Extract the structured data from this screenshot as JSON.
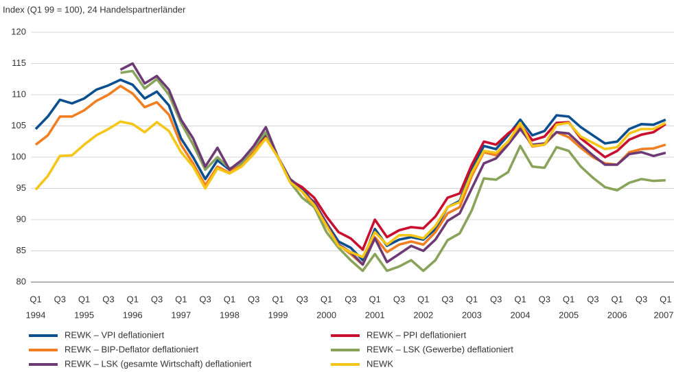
{
  "chart_data": {
    "type": "line",
    "title": "Index (Q1 99 = 100), 24 Handelspartnerländer",
    "categories": [
      "Q1",
      null,
      "Q3",
      null,
      "Q1",
      null,
      "Q3",
      null,
      "Q1",
      null,
      "Q3",
      null,
      "Q1",
      null,
      "Q3",
      null,
      "Q1",
      null,
      "Q3",
      null,
      "Q1",
      null,
      "Q3",
      null,
      "Q1",
      null,
      "Q3",
      null,
      "Q1",
      null,
      "Q3",
      null,
      "Q1",
      null,
      "Q3",
      null,
      "Q1",
      null,
      "Q3",
      null,
      "Q1",
      null,
      "Q3",
      null,
      "Q1",
      null,
      "Q3",
      null,
      "Q1",
      null,
      "Q3",
      null,
      "Q1"
    ],
    "year_labels": [
      "1994",
      "1995",
      "1996",
      "1997",
      "1998",
      "1999",
      "2000",
      "2001",
      "2002",
      "2003",
      "2004",
      "2005",
      "2006",
      "2007"
    ],
    "ylim": [
      80,
      120
    ],
    "yticks": [
      80,
      85,
      90,
      95,
      100,
      105,
      110,
      115,
      120
    ],
    "grid": true,
    "series": [
      {
        "name": "REWK – VPI deflationiert",
        "color": "#0b4f8e",
        "values": [
          104.5,
          106.5,
          109.2,
          108.6,
          109.4,
          110.8,
          111.5,
          112.4,
          111.6,
          109.4,
          110.5,
          108.3,
          103,
          100,
          96.5,
          99.5,
          98,
          99,
          101,
          103.5,
          100,
          96.5,
          95,
          92.5,
          89.5,
          86.5,
          85.5,
          83.5,
          88.5,
          85.8,
          86.8,
          87.2,
          86.8,
          88.5,
          92,
          93,
          98,
          101.8,
          101.3,
          103.5,
          106,
          103.5,
          104.2,
          106.7,
          106.5,
          104.8,
          103.5,
          102.2,
          102.5,
          104.5,
          105.3,
          105.2,
          106
        ]
      },
      {
        "name": "REWK – PPI deflationiert",
        "color": "#c8102e",
        "values": [
          null,
          null,
          null,
          null,
          null,
          null,
          null,
          null,
          null,
          null,
          null,
          null,
          null,
          null,
          null,
          null,
          98,
          99.5,
          101,
          103.2,
          100,
          96.3,
          95.2,
          93.5,
          90.5,
          88,
          87,
          85.2,
          90,
          87.2,
          88.3,
          88.8,
          88.6,
          90.5,
          93.5,
          94.2,
          98.8,
          102.5,
          102,
          103.8,
          105.3,
          102.7,
          103.3,
          105.5,
          105.6,
          103,
          101.5,
          100,
          101,
          102.8,
          103.6,
          104,
          105.3
        ]
      },
      {
        "name": "REWK – BIP-Deflator deflationiert",
        "color": "#f07f22",
        "values": [
          102,
          103.5,
          106.5,
          106.5,
          107.5,
          109,
          110,
          111.4,
          110.2,
          108,
          108.8,
          106.8,
          102,
          99,
          95.5,
          98.5,
          97.5,
          99,
          101,
          103,
          100,
          96.2,
          94.5,
          92,
          89,
          86,
          84.5,
          82.8,
          87.2,
          84.8,
          86,
          86.5,
          86,
          88,
          91,
          92,
          97,
          100.8,
          100.3,
          102.5,
          105,
          101.7,
          102,
          104,
          103.2,
          101.5,
          100,
          99,
          98.8,
          100.8,
          101.3,
          101.4,
          102
        ]
      },
      {
        "name": "REWK – LSK (Gewerbe) deflationiert",
        "color": "#8aa35a",
        "values": [
          null,
          null,
          null,
          null,
          null,
          null,
          null,
          113.5,
          113.8,
          111,
          112.5,
          110,
          105.5,
          102,
          98,
          100,
          98.2,
          99,
          101.5,
          104,
          100,
          96,
          93.5,
          92,
          88,
          85.5,
          83.5,
          81.8,
          84.5,
          81.8,
          82.5,
          83.5,
          81.8,
          83.5,
          86.7,
          87.8,
          91.5,
          96.6,
          96.4,
          97.6,
          101.8,
          98.5,
          98.3,
          101.6,
          101,
          98.5,
          96.7,
          95.2,
          94.7,
          95.9,
          96.5,
          96.2,
          96.3
        ]
      },
      {
        "name": "REWK – LSK (gesamte Wirtschaft) deflationiert",
        "color": "#6d3a75",
        "values": [
          null,
          null,
          null,
          null,
          null,
          null,
          null,
          114,
          115,
          111.8,
          113,
          110.8,
          106,
          103,
          98.5,
          101.5,
          98,
          99.5,
          101.8,
          104.8,
          100,
          96.5,
          94.5,
          92.8,
          89.5,
          86,
          84.8,
          82.8,
          87,
          83.2,
          84.5,
          85.8,
          85,
          86.8,
          89.8,
          91,
          95,
          99,
          99.8,
          102,
          104.5,
          102,
          102.2,
          104,
          103.8,
          102,
          100.3,
          98.8,
          98.8,
          100.5,
          100.8,
          100.2,
          100.7
        ]
      },
      {
        "name": "NEWK",
        "color": "#f5c518",
        "values": [
          94.8,
          97,
          100.2,
          100.3,
          102,
          103.5,
          104.5,
          105.7,
          105.3,
          104,
          105.6,
          104.2,
          100.8,
          98.5,
          95,
          98.2,
          97.4,
          98.5,
          100.5,
          103,
          100,
          96,
          94.5,
          92.3,
          89,
          85.8,
          84.8,
          84,
          88,
          86,
          87.5,
          87.5,
          87,
          89,
          92,
          92.8,
          97.5,
          101,
          100.7,
          102.5,
          105.5,
          101.8,
          102,
          105.2,
          105.5,
          103.3,
          102.3,
          101.3,
          101.6,
          103.8,
          104.5,
          104.5,
          105.5
        ]
      }
    ]
  }
}
